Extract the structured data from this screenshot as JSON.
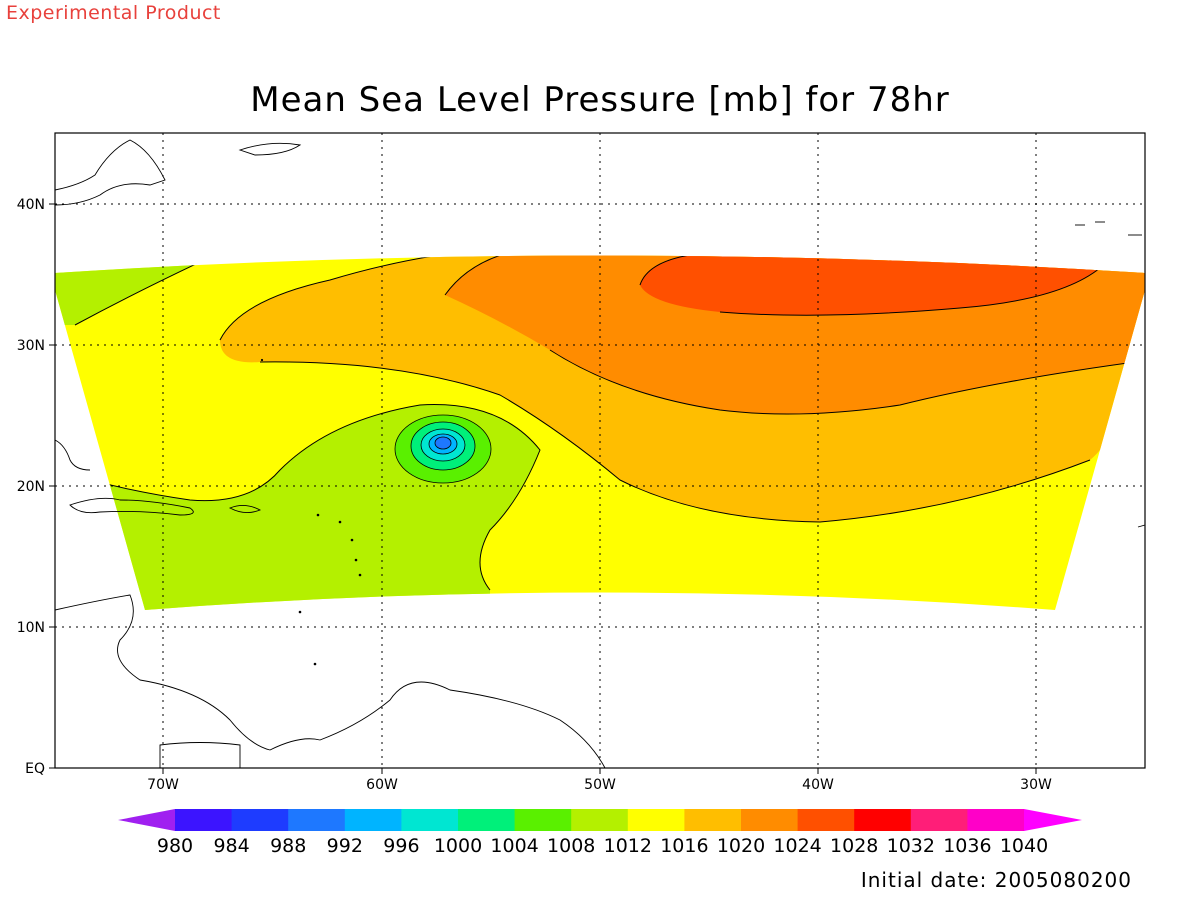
{
  "header": {
    "corner_label": "Experimental Product",
    "title": "Mean Sea Level Pressure [mb] for 78hr",
    "initial_date": "Initial date: 2005080200"
  },
  "axes": {
    "lat_labels": [
      "EQ",
      "10N",
      "20N",
      "30N",
      "40N"
    ],
    "lon_labels": [
      "70W",
      "60W",
      "50W",
      "40W",
      "30W"
    ]
  },
  "colorbar": {
    "levels": [
      "980",
      "984",
      "988",
      "992",
      "996",
      "1000",
      "1004",
      "1008",
      "1012",
      "1016",
      "1020",
      "1024",
      "1028",
      "1032",
      "1036",
      "1040"
    ],
    "colors": [
      "#a020f0",
      "#3c14ff",
      "#1e3cff",
      "#1e78ff",
      "#00b4ff",
      "#00e6d2",
      "#00f07a",
      "#5af000",
      "#b4f000",
      "#ffff00",
      "#ffbe00",
      "#ff8c00",
      "#ff5000",
      "#ff0000",
      "#ff1e78",
      "#ff00c8",
      "#ff00ff"
    ]
  },
  "fields": {
    "high_pressure_center": "1028",
    "low_pressure_center": "996"
  }
}
